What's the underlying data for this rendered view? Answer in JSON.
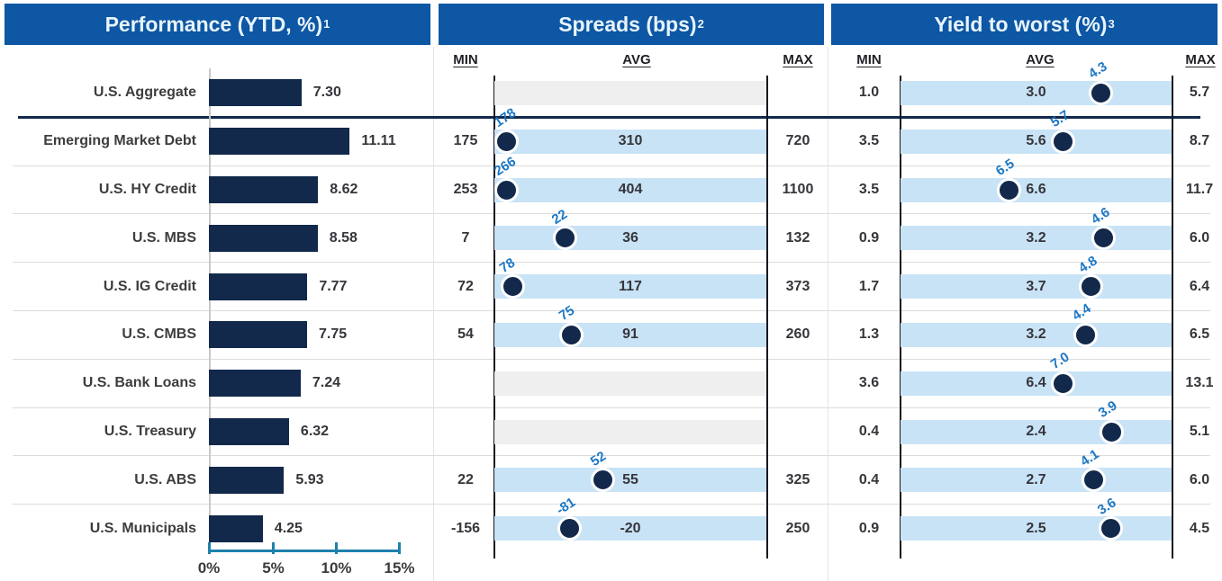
{
  "panels": {
    "performance": {
      "title": "Performance (YTD, %)",
      "sup": "1"
    },
    "spreads": {
      "title": "Spreads (bps)",
      "sup": "2"
    },
    "ytw": {
      "title": "Yield to worst (%)",
      "sup": "3"
    }
  },
  "column_headers": {
    "min": "MIN",
    "avg": "AVG",
    "max": "MAX"
  },
  "colors": {
    "header_blue": "#0d57a4",
    "header_text": "#e8f4fc",
    "bar_navy": "#12294b",
    "dot_navy": "#12294b",
    "range_light_blue": "#c9e3f6",
    "range_gray": "#efefef",
    "current_label_blue": "#1b77c4",
    "axis_teal": "#1e81ad",
    "text_dark": "#35353b"
  },
  "chart_data": {
    "type": "mixed",
    "panels": [
      {
        "name": "Performance (YTD, %)",
        "sup": "1",
        "type": "bar",
        "unit": "%",
        "xlim": [
          0,
          15
        ],
        "x_ticks": [
          "0%",
          "5%",
          "10%",
          "15%"
        ]
      },
      {
        "name": "Spreads (bps)",
        "sup": "2",
        "type": "range-dot",
        "unit": "bps",
        "columns": [
          "MIN",
          "AVG",
          "MAX"
        ]
      },
      {
        "name": "Yield to worst (%)",
        "sup": "3",
        "type": "range-dot",
        "unit": "%",
        "columns": [
          "MIN",
          "AVG",
          "MAX"
        ]
      }
    ],
    "categories": [
      "U.S. Aggregate",
      "Emerging Market Debt",
      "U.S. HY Credit",
      "U.S. MBS",
      "U.S. IG Credit",
      "U.S. CMBS",
      "U.S. Bank Loans",
      "U.S. Treasury",
      "U.S. ABS",
      "U.S. Municipals"
    ],
    "rows": [
      {
        "label": "U.S. Aggregate",
        "perf": 7.3,
        "spread": null,
        "ytw": {
          "min": 1.0,
          "avg": 3.0,
          "cur": 4.3,
          "max": 5.7
        }
      },
      {
        "label": "Emerging Market Debt",
        "perf": 11.11,
        "spread": {
          "min": 175,
          "avg": 310,
          "cur": 178,
          "max": 720
        },
        "ytw": {
          "min": 3.5,
          "avg": 5.6,
          "cur": 5.7,
          "max": 8.7
        }
      },
      {
        "label": "U.S. HY Credit",
        "perf": 8.62,
        "spread": {
          "min": 253,
          "avg": 404,
          "cur": 266,
          "max": 1100
        },
        "ytw": {
          "min": 3.5,
          "avg": 6.6,
          "cur": 6.5,
          "max": 11.7
        }
      },
      {
        "label": "U.S. MBS",
        "perf": 8.58,
        "spread": {
          "min": 7,
          "avg": 36,
          "cur": 22,
          "max": 132
        },
        "ytw": {
          "min": 0.9,
          "avg": 3.2,
          "cur": 4.6,
          "max": 6.0
        }
      },
      {
        "label": "U.S. IG Credit",
        "perf": 7.77,
        "spread": {
          "min": 72,
          "avg": 117,
          "cur": 78,
          "max": 373
        },
        "ytw": {
          "min": 1.7,
          "avg": 3.7,
          "cur": 4.8,
          "max": 6.4
        }
      },
      {
        "label": "U.S. CMBS",
        "perf": 7.75,
        "spread": {
          "min": 54,
          "avg": 91,
          "cur": 75,
          "max": 260
        },
        "ytw": {
          "min": 1.3,
          "avg": 3.2,
          "cur": 4.4,
          "max": 6.5
        }
      },
      {
        "label": "U.S. Bank Loans",
        "perf": 7.24,
        "spread": null,
        "ytw": {
          "min": 3.6,
          "avg": 6.4,
          "cur": 7.0,
          "max": 13.1
        }
      },
      {
        "label": "U.S. Treasury",
        "perf": 6.32,
        "spread": null,
        "ytw": {
          "min": 0.4,
          "avg": 2.4,
          "cur": 3.9,
          "max": 5.1
        }
      },
      {
        "label": "U.S. ABS",
        "perf": 5.93,
        "spread": {
          "min": 22,
          "avg": 55,
          "cur": 52,
          "max": 325
        },
        "ytw": {
          "min": 0.4,
          "avg": 2.7,
          "cur": 4.1,
          "max": 6.0
        }
      },
      {
        "label": "U.S. Municipals",
        "perf": 4.25,
        "spread": {
          "min": -156,
          "avg": -20,
          "cur": -81,
          "max": 250
        },
        "ytw": {
          "min": 0.9,
          "avg": 2.5,
          "cur": 3.6,
          "max": 4.5
        }
      }
    ]
  }
}
